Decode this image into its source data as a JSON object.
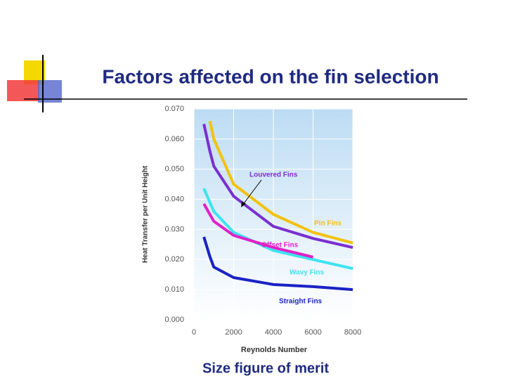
{
  "slide": {
    "title": "Factors affected on the fin selection",
    "caption": "Size figure of merit"
  },
  "chart_data": {
    "type": "line",
    "x_label": "Reynolds Number",
    "y_label": "Heat Transfer per Unit Height",
    "x": [
      500,
      800,
      1000,
      2000,
      4000,
      6000,
      8000
    ],
    "series": [
      {
        "name": "Pin Fins",
        "color": "#f2c20f",
        "values": [
          null,
          0.066,
          0.06,
          0.045,
          0.035,
          0.029,
          0.0255
        ]
      },
      {
        "name": "Louvered Fins",
        "color": "#7a2fd0",
        "values": [
          0.065,
          0.056,
          0.051,
          0.041,
          0.031,
          0.027,
          0.024
        ]
      },
      {
        "name": "Wavy Fins",
        "color": "#3ee3f0",
        "values": [
          0.0436,
          0.039,
          0.036,
          0.029,
          0.023,
          0.02,
          0.017
        ]
      },
      {
        "name": "Offset Fins",
        "color": "#e020c8",
        "values": [
          0.0385,
          0.035,
          0.0327,
          0.028,
          0.024,
          0.0208,
          null
        ]
      },
      {
        "name": "Straight Fins",
        "color": "#1a22c4",
        "values": [
          0.0275,
          0.021,
          0.0175,
          0.014,
          0.0117,
          0.011,
          0.01
        ]
      }
    ],
    "xlim": [
      0,
      8000
    ],
    "xticks": [
      0,
      2000,
      4000,
      6000,
      8000
    ],
    "ylim": [
      0,
      0.07
    ],
    "yticks": [
      {
        "value": 0,
        "label": "0.000"
      },
      {
        "value": 0.01,
        "label": "0.010"
      },
      {
        "value": 0.02,
        "label": "0.020"
      },
      {
        "value": 0.03,
        "label": "0.030"
      },
      {
        "value": 0.04,
        "label": "0.040"
      },
      {
        "value": 0.05,
        "label": "0.050"
      },
      {
        "value": 0.06,
        "label": "0.060"
      },
      {
        "value": 0.07,
        "label": "0.070"
      }
    ],
    "grid": true
  }
}
